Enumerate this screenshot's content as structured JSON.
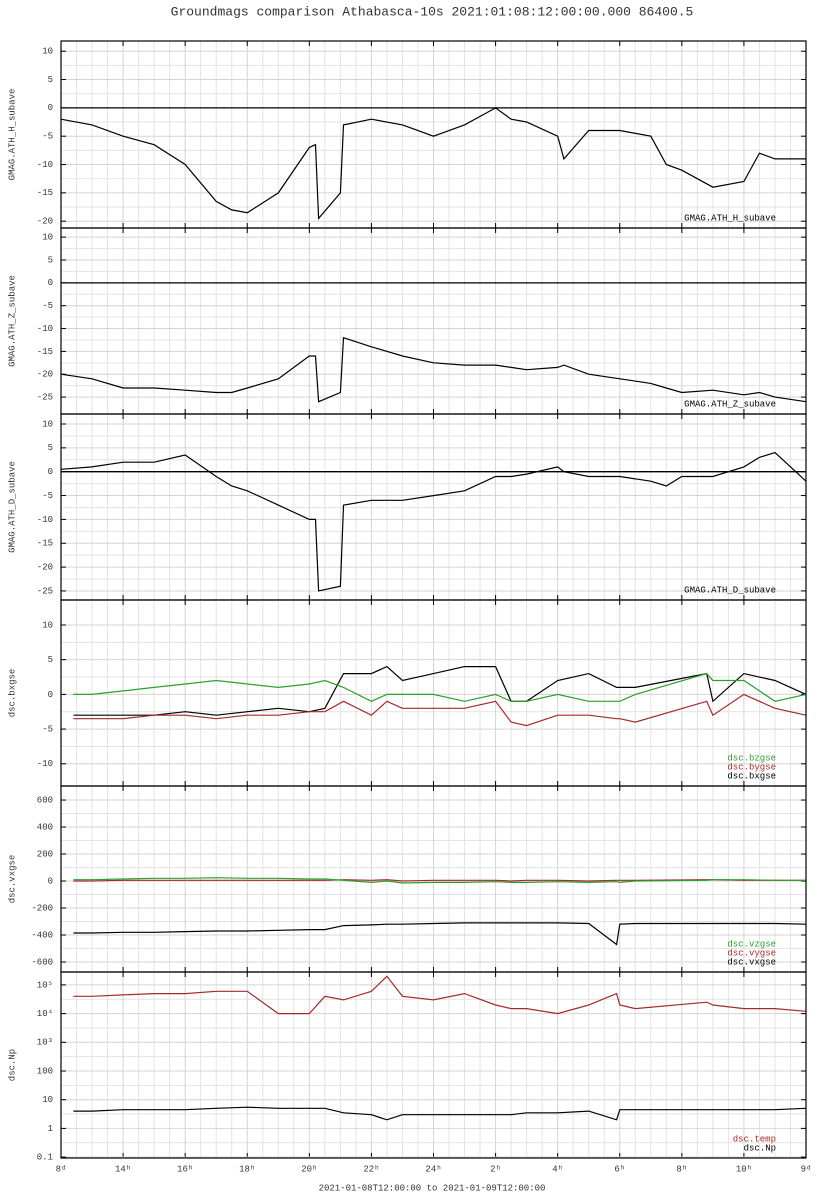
{
  "chart_data": [
    {
      "type": "line",
      "title": "Groundmags comparison Athabasca-10s 2021:01:08:12:00:00.000 86400.5",
      "ylabel": "GMAG.ATH_H_subave",
      "x": [
        0,
        1,
        2,
        3,
        4,
        5,
        5.5,
        6,
        7,
        8,
        8.2,
        8.3,
        9,
        9.1,
        10,
        11,
        12,
        13,
        14,
        14.5,
        15,
        16,
        16.2,
        17,
        18,
        19,
        19.5,
        20,
        21,
        22,
        22.5,
        23,
        24
      ],
      "xlim": [
        0,
        24
      ],
      "xticks": [
        0,
        2,
        4,
        6,
        8,
        10,
        12,
        14,
        16,
        18,
        20,
        22,
        24
      ],
      "ylim": [
        -21.2,
        11.8
      ],
      "yticks": [
        -20,
        -15,
        -10,
        -5,
        0,
        5,
        10
      ],
      "hline": 0,
      "grid": true,
      "series": [
        {
          "name": "GMAG.ATH_H_subave",
          "color": "#000000",
          "values": [
            -2,
            -3,
            -5,
            -6.5,
            -10,
            -16.5,
            -18,
            -18.5,
            -15,
            -7,
            -6.5,
            -19.5,
            -15,
            -3,
            -2,
            -3,
            -5,
            -3,
            0,
            -2,
            -2.5,
            -5,
            -9,
            -4,
            -4,
            -5,
            -10,
            -11,
            -14,
            -13,
            -8,
            -9,
            -9
          ]
        }
      ]
    },
    {
      "type": "line",
      "ylabel": "GMAG.ATH_Z_subave",
      "x": [
        0,
        1,
        2,
        3,
        4,
        5,
        5.5,
        6,
        7,
        8,
        8.2,
        8.3,
        9,
        9.1,
        10,
        11,
        12,
        13,
        14,
        14.5,
        15,
        16,
        16.2,
        17,
        18,
        19,
        19.5,
        20,
        21,
        22,
        22.5,
        23,
        24
      ],
      "xlim": [
        0,
        24
      ],
      "xticks": [
        0,
        2,
        4,
        6,
        8,
        10,
        12,
        14,
        16,
        18,
        20,
        22,
        24
      ],
      "ylim": [
        -28.7,
        12
      ],
      "yticks": [
        -25,
        -20,
        -15,
        -10,
        -5,
        0,
        5,
        10
      ],
      "hline": 0,
      "grid": true,
      "series": [
        {
          "name": "GMAG.ATH_Z_subave",
          "color": "#000000",
          "values": [
            -20,
            -21,
            -23,
            -23,
            -23.5,
            -24,
            -24,
            -23,
            -21,
            -16,
            -16,
            -26,
            -24,
            -12,
            -14,
            -16,
            -17.5,
            -18,
            -18,
            -18.5,
            -19,
            -18.5,
            -18,
            -20,
            -21,
            -22,
            -23,
            -24,
            -23.5,
            -24.5,
            -24,
            -25,
            -26
          ]
        }
      ]
    },
    {
      "type": "line",
      "ylabel": "GMAG.ATH_D_subave",
      "x": [
        0,
        1,
        2,
        3,
        4,
        5,
        5.5,
        6,
        7,
        8,
        8.2,
        8.3,
        9,
        9.1,
        10,
        11,
        12,
        13,
        14,
        14.5,
        15,
        16,
        16.2,
        17,
        18,
        19,
        19.5,
        20,
        21,
        22,
        22.5,
        23,
        24
      ],
      "xlim": [
        0,
        24
      ],
      "xticks": [
        0,
        2,
        4,
        6,
        8,
        10,
        12,
        14,
        16,
        18,
        20,
        22,
        24
      ],
      "ylim": [
        -26.9,
        12.1
      ],
      "yticks": [
        -25,
        -20,
        -15,
        -10,
        -5,
        0,
        5,
        10
      ],
      "hline": 0,
      "grid": true,
      "series": [
        {
          "name": "GMAG.ATH_D_subave",
          "color": "#000000",
          "values": [
            0.5,
            1,
            2,
            2,
            3.5,
            -1,
            -3,
            -4,
            -7,
            -10,
            -10,
            -25,
            -24,
            -7,
            -6,
            -6,
            -5,
            -4,
            -1,
            -1,
            -0.5,
            1,
            0,
            -1,
            -1,
            -2,
            -3,
            -1,
            -1,
            1,
            3,
            4,
            -2
          ]
        }
      ]
    },
    {
      "type": "line",
      "ylabel": "dsc.bxgse",
      "x": [
        0.4,
        1,
        2,
        3,
        4,
        5,
        6,
        7,
        8,
        8.5,
        9.1,
        10,
        10.5,
        11,
        12,
        13,
        14,
        14.5,
        15,
        16,
        17,
        17.9,
        18,
        18.5,
        20.8,
        21,
        22,
        23,
        24
      ],
      "xlim": [
        0,
        24
      ],
      "xticks": [
        0,
        2,
        4,
        6,
        8,
        10,
        12,
        14,
        16,
        18,
        20,
        22,
        24
      ],
      "ylim": [
        -13.2,
        13.6
      ],
      "yticks": [
        -10,
        -5,
        0,
        5,
        10
      ],
      "grid": true,
      "series": [
        {
          "name": "dsc.bzgse",
          "color": "#2ca02c",
          "values": [
            0,
            0,
            0.5,
            1,
            1.5,
            2,
            1.5,
            1,
            1.5,
            2,
            1,
            -1,
            0,
            0,
            0,
            -1,
            0,
            -1,
            -1,
            0,
            -1,
            -1,
            -1,
            0,
            3,
            2,
            2,
            -1,
            0
          ]
        },
        {
          "name": "dsc.bygse",
          "color": "#a52a2a",
          "values": [
            -3.5,
            -3.5,
            -3.5,
            -3,
            -3,
            -3.5,
            -3,
            -3,
            -2.5,
            -2.5,
            -1,
            -3,
            -1,
            -2,
            -2,
            -2,
            -1,
            -4,
            -4.5,
            -3,
            -3,
            -3.5,
            -3.5,
            -4,
            -1,
            -3,
            0,
            -2,
            -3
          ]
        },
        {
          "name": "dsc.bxgse",
          "color": "#000000",
          "values": [
            -3,
            -3,
            -3,
            -3,
            -2.5,
            -3,
            -2.5,
            -2,
            -2.5,
            -2,
            3,
            3,
            4,
            2,
            3,
            4,
            4,
            -1,
            -1,
            2,
            3,
            1,
            1,
            1,
            3,
            -1,
            3,
            2,
            0
          ]
        }
      ]
    },
    {
      "type": "line",
      "ylabel": "dsc.vxgse",
      "x": [
        0.4,
        1,
        2,
        3,
        4,
        5,
        6,
        7,
        8,
        8.5,
        9.1,
        10,
        10.5,
        11,
        12,
        13,
        14,
        14.5,
        15,
        16,
        17,
        17.9,
        18,
        18.5,
        20.8,
        21,
        22,
        23,
        24
      ],
      "xlim": [
        0,
        24
      ],
      "xticks": [
        0,
        2,
        4,
        6,
        8,
        10,
        12,
        14,
        16,
        18,
        20,
        22,
        24
      ],
      "ylim": [
        -674,
        704
      ],
      "yticks": [
        -600,
        -400,
        -200,
        0,
        200,
        400,
        600
      ],
      "grid": true,
      "series": [
        {
          "name": "dsc.vzgse",
          "color": "#2ca02c",
          "values": [
            10,
            10,
            15,
            20,
            20,
            25,
            20,
            20,
            15,
            15,
            5,
            -10,
            0,
            -15,
            -10,
            -10,
            -5,
            -10,
            -10,
            -5,
            -10,
            -5,
            -10,
            0,
            5,
            10,
            10,
            5,
            5
          ]
        },
        {
          "name": "dsc.vygse",
          "color": "#a52a2a",
          "values": [
            0,
            0,
            5,
            5,
            5,
            5,
            5,
            5,
            5,
            5,
            10,
            5,
            10,
            0,
            5,
            5,
            5,
            0,
            5,
            5,
            0,
            5,
            5,
            5,
            10,
            10,
            5,
            5,
            5
          ]
        },
        {
          "name": "dsc.vxgse",
          "color": "#000000",
          "values": [
            -385,
            -385,
            -380,
            -380,
            -375,
            -370,
            -370,
            -365,
            -360,
            -360,
            -330,
            -325,
            -320,
            -320,
            -315,
            -310,
            -310,
            -310,
            -310,
            -310,
            -315,
            -470,
            -320,
            -315,
            -315,
            -315,
            -315,
            -315,
            -320
          ]
        }
      ]
    },
    {
      "type": "line",
      "ylabel": "dsc.Np",
      "log": true,
      "xlabel": "2021-01-08T12:00:00 to 2021-01-09T12:00:00",
      "x": [
        0.4,
        1,
        2,
        3,
        4,
        5,
        6,
        7,
        8,
        8.5,
        9.1,
        10,
        10.5,
        11,
        12,
        13,
        14,
        14.5,
        15,
        16,
        17,
        17.9,
        18,
        18.5,
        20.8,
        21,
        22,
        23,
        24
      ],
      "xlim": [
        0,
        24
      ],
      "xticks": [
        {
          "value": 0,
          "label": "8ᵈ"
        },
        {
          "value": 2,
          "label": "14ʰ"
        },
        {
          "value": 4,
          "label": "16ʰ"
        },
        {
          "value": 6,
          "label": "18ʰ"
        },
        {
          "value": 8,
          "label": "20ʰ"
        },
        {
          "value": 10,
          "label": "22ʰ"
        },
        {
          "value": 12,
          "label": "24ʰ"
        },
        {
          "value": 14,
          "label": "2ʰ"
        },
        {
          "value": 16,
          "label": "4ʰ"
        },
        {
          "value": 18,
          "label": "6ʰ"
        },
        {
          "value": 20,
          "label": "8ʰ"
        },
        {
          "value": 22,
          "label": "10ʰ"
        },
        {
          "value": 24,
          "label": "9ᵈ"
        }
      ],
      "ylim": [
        0.093,
        282000
      ],
      "yticks": [
        0.1,
        1,
        10,
        100,
        {
          "value": 1000,
          "label": "10³"
        },
        {
          "value": 10000,
          "label": "10⁴"
        },
        {
          "value": 100000,
          "label": "10⁵"
        }
      ],
      "grid": true,
      "series": [
        {
          "name": "dsc.temp",
          "color": "#a52a2a",
          "values": [
            40000,
            40000,
            45000,
            50000,
            50000,
            60000,
            60000,
            10000,
            10000,
            40000,
            30000,
            60000,
            200000,
            40000,
            30000,
            50000,
            20000,
            15000,
            15000,
            10000,
            20000,
            50000,
            20000,
            15000,
            25000,
            20000,
            15000,
            15000,
            12000
          ]
        },
        {
          "name": "dsc.Np",
          "color": "#000000",
          "values": [
            4,
            4,
            4.5,
            4.5,
            4.5,
            5,
            5.5,
            5,
            5,
            5,
            3.5,
            3,
            2,
            3,
            3,
            3,
            3,
            3,
            3.5,
            3.5,
            4,
            2,
            4.5,
            4.5,
            4.5,
            4.5,
            4.5,
            4.5,
            5
          ]
        }
      ]
    }
  ]
}
